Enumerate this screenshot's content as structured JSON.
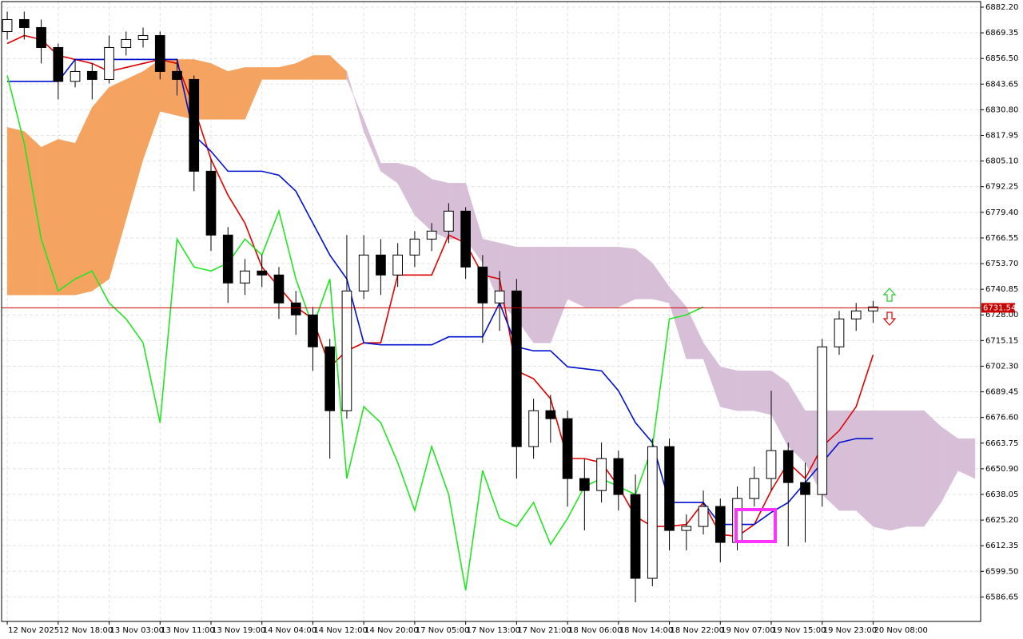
{
  "chart_data": {
    "type": "candlestick",
    "x": [
      0,
      3,
      6,
      9,
      12,
      15,
      18,
      21,
      24,
      27,
      30,
      33,
      36,
      39,
      42,
      45,
      48,
      51,
      54,
      57,
      60,
      63,
      66,
      69,
      72,
      75,
      78,
      81,
      84,
      87,
      90,
      93,
      96,
      99,
      102,
      105,
      108,
      111,
      114,
      117,
      120,
      123,
      126,
      129,
      132,
      135,
      138,
      141,
      144,
      147,
      150,
      153,
      156,
      159,
      162,
      165,
      168,
      171
    ],
    "xlim": [
      -1,
      172
    ],
    "ylim": [
      6574.4,
      6885.0
    ],
    "grid": true,
    "xticks": [
      {
        "value": 0,
        "label": "12 Nov 2025"
      },
      {
        "value": 9,
        "label": "12 Nov 18:00"
      },
      {
        "value": 18,
        "label": "13 Nov 03:00"
      },
      {
        "value": 27,
        "label": "13 Nov 11:00"
      },
      {
        "value": 36,
        "label": "13 Nov 19:00"
      },
      {
        "value": 45,
        "label": "14 Nov 04:00"
      },
      {
        "value": 54,
        "label": "14 Nov 12:00"
      },
      {
        "value": 63,
        "label": "14 Nov 20:00"
      },
      {
        "value": 72,
        "label": "17 Nov 05:00"
      },
      {
        "value": 81,
        "label": "17 Nov 13:00"
      },
      {
        "value": 90,
        "label": "17 Nov 21:00"
      },
      {
        "value": 99,
        "label": "18 Nov 06:00"
      },
      {
        "value": 108,
        "label": "18 Nov 14:00"
      },
      {
        "value": 117,
        "label": "18 Nov 22:00"
      },
      {
        "value": 126,
        "label": "19 Nov 07:00"
      },
      {
        "value": 135,
        "label": "19 Nov 15:00"
      },
      {
        "value": 144,
        "label": "19 Nov 23:00"
      },
      {
        "value": 153,
        "label": "20 Nov 08:00"
      }
    ],
    "yticks": [
      {
        "value": 6882.2,
        "label": "6882.20"
      },
      6869.35,
      {
        "value": 6856.5,
        "label": "6856.50"
      },
      6843.65,
      {
        "value": 6830.8,
        "label": "6830.80"
      },
      6817.95,
      {
        "value": 6805.1,
        "label": "6805.10"
      },
      6792.25,
      {
        "value": 6779.4,
        "label": "6779.40"
      },
      6766.55,
      {
        "value": 6753.7,
        "label": "6753.70"
      },
      6740.85,
      {
        "value": 6728,
        "label": "6728.00"
      },
      6715.15,
      {
        "value": 6702.3,
        "label": "6702.30"
      },
      6689.45,
      {
        "value": 6676.6,
        "label": "6676.60"
      },
      6663.75,
      {
        "value": 6650.9,
        "label": "6650.90"
      },
      6638.05,
      {
        "value": 6625.2,
        "label": "6625.20"
      },
      6612.35,
      {
        "value": 6599.5,
        "label": "6599.50"
      },
      6586.65
    ],
    "current_price": 6731.54,
    "current_price_color": "#c80000",
    "candle_up_color": "#ffffff",
    "candle_down_color": "#000000",
    "candles": [
      [
        6870,
        6880,
        6866,
        6876
      ],
      [
        6876,
        6880,
        6866,
        6872
      ],
      [
        6872,
        6876,
        6854,
        6862
      ],
      [
        6862,
        6864,
        6836,
        6845
      ],
      [
        6845,
        6856,
        6842,
        6850
      ],
      [
        6850,
        6854,
        6836,
        6846
      ],
      [
        6846,
        6868,
        6844,
        6862
      ],
      [
        6862,
        6870,
        6858,
        6866
      ],
      [
        6866,
        6872,
        6862,
        6868
      ],
      [
        6868,
        6870,
        6846,
        6850
      ],
      [
        6850,
        6856,
        6838,
        6846
      ],
      [
        6846,
        6848,
        6790,
        6800
      ],
      [
        6800,
        6806,
        6760,
        6768
      ],
      [
        6768,
        6772,
        6734,
        6744
      ],
      [
        6744,
        6756,
        6738,
        6750
      ],
      [
        6750,
        6758,
        6742,
        6748
      ],
      [
        6748,
        6752,
        6726,
        6734
      ],
      [
        6734,
        6740,
        6718,
        6728
      ],
      [
        6728,
        6732,
        6700,
        6712
      ],
      [
        6712,
        6716,
        6656,
        6680
      ],
      [
        6680,
        6768,
        6676,
        6740
      ],
      [
        6740,
        6768,
        6736,
        6758
      ],
      [
        6758,
        6766,
        6738,
        6748
      ],
      [
        6748,
        6764,
        6742,
        6758
      ],
      [
        6758,
        6770,
        6752,
        6766
      ],
      [
        6766,
        6774,
        6760,
        6770
      ],
      [
        6770,
        6784,
        6764,
        6780
      ],
      [
        6780,
        6782,
        6746,
        6752
      ],
      [
        6752,
        6758,
        6714,
        6734
      ],
      [
        6734,
        6750,
        6720,
        6740
      ],
      [
        6740,
        6746,
        6646,
        6662
      ],
      [
        6662,
        6686,
        6656,
        6680
      ],
      [
        6680,
        6688,
        6664,
        6676
      ],
      [
        6676,
        6680,
        6632,
        6646
      ],
      [
        6646,
        6656,
        6620,
        6640
      ],
      [
        6640,
        6664,
        6634,
        6656
      ],
      [
        6656,
        6660,
        6630,
        6638
      ],
      [
        6638,
        6648,
        6584,
        6596
      ],
      [
        6596,
        6666,
        6592,
        6662
      ],
      [
        6662,
        6666,
        6610,
        6620
      ],
      [
        6620,
        6628,
        6610,
        6622
      ],
      [
        6622,
        6640,
        6618,
        6632
      ],
      [
        6632,
        6636,
        6604,
        6614
      ],
      [
        6614,
        6642,
        6610,
        6636
      ],
      [
        6636,
        6652,
        6632,
        6646
      ],
      [
        6646,
        6690,
        6640,
        6660
      ],
      [
        6660,
        6664,
        6612,
        6644
      ],
      [
        6644,
        6654,
        6614,
        6638
      ],
      [
        6638,
        6716,
        6632,
        6712
      ],
      [
        6712,
        6730,
        6708,
        6726
      ],
      [
        6726,
        6734,
        6720,
        6730
      ],
      [
        6730,
        6735,
        6724,
        6732
      ],
      null,
      null,
      null,
      null,
      null,
      null
    ],
    "cloud": {
      "up_color": "#f4a460",
      "down_color": "#d8bfd8",
      "span_a": [
        6822,
        6820,
        6812,
        6816,
        6814,
        6832,
        6842,
        6846,
        6850,
        6856,
        6856,
        6856,
        6854,
        6850,
        6852,
        6852,
        6852,
        6854,
        6858,
        6858,
        6850,
        6820,
        6800,
        6794,
        6778,
        6770,
        6766,
        6766,
        6754,
        6734,
        6726,
        6714,
        6714,
        6736,
        6732,
        6732,
        6732,
        6736,
        6736,
        6734,
        6706,
        6706,
        6682,
        6680,
        6680,
        6678,
        6662,
        6654,
        6638,
        6630,
        6630,
        6622,
        6620,
        6622,
        6622,
        6634,
        6650,
        6646
      ],
      "span_b": [
        6738,
        6738,
        6738,
        6738,
        6738,
        6740,
        6746,
        6776,
        6806,
        6830,
        6828,
        6826,
        6826,
        6826,
        6826,
        6846,
        6846,
        6846,
        6846,
        6846,
        6846,
        6826,
        6804,
        6804,
        6802,
        6796,
        6794,
        6794,
        6766,
        6764,
        6762,
        6762,
        6762,
        6762,
        6762,
        6762,
        6762,
        6761,
        6754,
        6742,
        6732,
        6714,
        6702,
        6700,
        6700,
        6700,
        6694,
        6680,
        6680,
        6680,
        6680,
        6680,
        6680,
        6680,
        6680,
        6672,
        6666,
        6666
      ]
    },
    "series": [
      {
        "color": "#e00000",
        "values": [
          6864,
          6868,
          6866,
          6858,
          6856,
          6854,
          6850,
          6852,
          6854,
          6856,
          6854,
          6832,
          6806,
          6788,
          6774,
          6752,
          6742,
          6732,
          6726,
          6702,
          6710,
          6714,
          6714,
          6748,
          6748,
          6748,
          6768,
          6764,
          6748,
          6746,
          6700,
          6696,
          6686,
          6656,
          6656,
          6654,
          6642,
          6627,
          6622,
          6622,
          6623,
          6634,
          6618,
          6617,
          6623,
          6640,
          6654,
          6646,
          6662,
          6670,
          6682,
          6708,
          null,
          null,
          null,
          null,
          null,
          null
        ]
      },
      {
        "color": "#0010d0",
        "values": [
          6845,
          6845,
          6845,
          6845,
          6856,
          6856,
          6856,
          6856,
          6856,
          6856,
          6856,
          6818,
          6810,
          6800,
          6800,
          6800,
          6798,
          6790,
          6774,
          6758,
          6746,
          6714,
          6713,
          6713,
          6713,
          6713,
          6717,
          6717,
          6717,
          6734,
          6712,
          6710,
          6710,
          6702,
          6701,
          6700,
          6690,
          6674,
          6664,
          6634,
          6634,
          6634,
          6623,
          6623,
          6623,
          6629,
          6634,
          6644,
          6654,
          6664,
          6666,
          6666,
          null,
          null,
          null,
          null,
          null,
          null
        ]
      },
      {
        "color": "#22e622",
        "values": [
          6848,
          6814,
          6766,
          6740,
          6746,
          6750,
          6734,
          6726,
          6714,
          6674,
          6766,
          6752,
          6750,
          6754,
          6766,
          6758,
          6780,
          6746,
          6722,
          6746,
          6646,
          6682,
          6674,
          6654,
          6630,
          6662,
          6638,
          6590,
          6650,
          6626,
          6622,
          6634,
          6613,
          6626,
          6642,
          6646,
          6642,
          6638,
          6662,
          6726,
          6728,
          6732,
          null,
          null,
          null,
          null,
          null,
          null,
          null,
          null,
          null,
          null,
          null,
          null,
          null,
          null,
          null,
          null
        ]
      }
    ]
  }
}
